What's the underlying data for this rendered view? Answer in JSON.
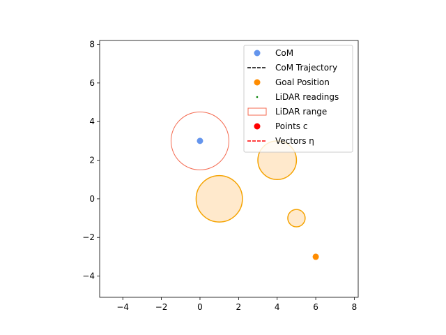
{
  "chart_data": {
    "type": "scatter",
    "title": "",
    "xlabel": "",
    "ylabel": "",
    "xlim": [
      -5.2,
      8.2
    ],
    "ylim": [
      -5.1,
      8.2
    ],
    "aspect": "equal",
    "grid": false,
    "x_ticks": [
      -4,
      -2,
      0,
      2,
      4,
      6,
      8
    ],
    "x_tick_labels": [
      "−4",
      "−2",
      "0",
      "2",
      "4",
      "6",
      "8"
    ],
    "y_ticks": [
      -4,
      -2,
      0,
      2,
      4,
      6,
      8
    ],
    "y_tick_labels": [
      "−4",
      "−2",
      "0",
      "2",
      "4",
      "6",
      "8"
    ],
    "com": {
      "x": 0.0,
      "y": 3.0,
      "color": "#6495ed"
    },
    "com_trajectory": {
      "x": [
        0.0,
        0.0
      ],
      "y": [
        2.9,
        3.1
      ],
      "color": "#000000"
    },
    "goal": {
      "x": 6.0,
      "y": -3.0,
      "color": "#ff8c00"
    },
    "lidar_range": {
      "x": 0.0,
      "y": 3.0,
      "r": 1.5,
      "color": "#f4694f"
    },
    "obstacles": [
      {
        "x": 1.0,
        "y": 0.0,
        "r": 1.2
      },
      {
        "x": 4.0,
        "y": 2.0,
        "r": 1.0
      },
      {
        "x": 5.0,
        "y": -1.0,
        "r": 0.45
      }
    ],
    "obstacle_fill": "#ffe9cc",
    "obstacle_edge": "#f5a300",
    "legend_position": "upper right",
    "legend": [
      {
        "label": "CoM",
        "kind": "circle-marker",
        "color": "#6495ed"
      },
      {
        "label": "CoM Trajectory",
        "kind": "dashed-line",
        "color": "#000000"
      },
      {
        "label": "Goal Position",
        "kind": "circle-marker",
        "color": "#ff8c00"
      },
      {
        "label": "LiDAR readings",
        "kind": "dot-marker",
        "color": "#008000"
      },
      {
        "label": "LiDAR range",
        "kind": "patch",
        "color": "#f4694f"
      },
      {
        "label": "Points c",
        "kind": "circle-marker",
        "color": "#ff0000"
      },
      {
        "label": "Vectors η",
        "kind": "dashed-line",
        "color": "#ff0000"
      }
    ]
  }
}
